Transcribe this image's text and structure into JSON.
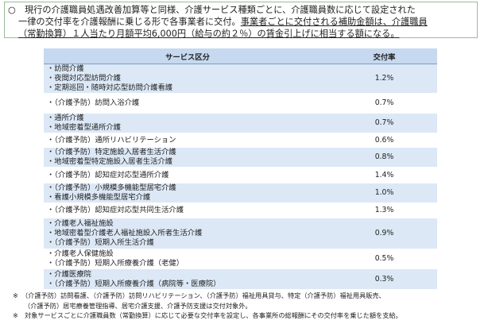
{
  "intro": {
    "lines": [
      [
        {
          "text": "○　現行の介護職員処遇改善加算等と同様、介護サービス種類ごとに、介護職員数に応じて設定された"
        }
      ],
      [
        {
          "text": "一律の交付率を介護報酬に乗じる形で各事業者に交付。"
        },
        {
          "text": "事業者ごとに交付される補助金額は、介護職員",
          "underline": true
        }
      ],
      [
        {
          "text": "（常勤換算）１人当たり月額平均6,000円（給与の約２％）の賃金引上げに相当する額になる。",
          "underline": true
        }
      ]
    ]
  },
  "table": {
    "header": [
      "サービス区分",
      "交付率"
    ],
    "rows": [
      {
        "services": [
          "・訪問介護",
          "・夜間対応型訪問介護",
          "・定期巡回・随時対応型訪問介護看護"
        ],
        "rate": "1.2%"
      },
      {
        "services": [
          "・（介護予防）訪問入浴介護"
        ],
        "rate": "0.7%"
      },
      {
        "services": [
          "・通所介護",
          "・地域密着型通所介護"
        ],
        "rate": "0.7%"
      },
      {
        "services": [
          "・（介護予防）通所リハビリテーション"
        ],
        "rate": "0.6%"
      },
      {
        "services": [
          "・（介護予防）特定施設入居者生活介護",
          "・地域密着型特定施設入居者生活介護"
        ],
        "rate": "0.8%"
      },
      {
        "services": [
          "・（介護予防）認知症対応型通所介護"
        ],
        "rate": "1.4%"
      },
      {
        "services": [
          "・（介護予防）小規模多機能型居宅介護",
          "・看護小規模多機能型居宅介護"
        ],
        "rate": "1.0%"
      },
      {
        "services": [
          "・（介護予防）認知症対応型共同生活介護"
        ],
        "rate": "1.3%"
      },
      {
        "services": [
          "・介護老人福祉施設",
          "・地域密着型介護老人福祉施設入所者生活介護",
          "・（介護予防）短期入所生活介護"
        ],
        "rate": "0.9%"
      },
      {
        "services": [
          "・介護老人保健施設",
          "・（介護予防）短期入所療養介護（老健）"
        ],
        "rate": "0.5%"
      },
      {
        "services": [
          "・介護医療院",
          "・（介護予防）短期入所療養介護（病院等・医療院）"
        ],
        "rate": "0.3%"
      }
    ]
  },
  "notes": [
    [
      "※　（介護予防）訪問看護、（介護予防）訪問リハビリテーション、（介護予防）福祉用具貸与、特定（介護予防）福祉用具販売、",
      "（介護予防）居宅療養管理指導、居宅介護支援、介護予防支援は交付対象外。"
    ],
    [
      "※　対象サービスごとに介護職員数（常勤換算）に応じて必要な交付率を設定し、各事業所の総報酬にその交付率を乗じた額を支給。"
    ]
  ]
}
